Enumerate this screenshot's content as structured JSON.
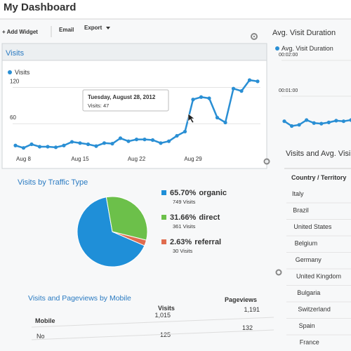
{
  "header": {
    "title": "My Dashboard",
    "toolbar": [
      "+ Add Widget",
      "Email",
      "Export"
    ]
  },
  "chart_data": [
    {
      "type": "line",
      "title": "Visits",
      "categories": [
        null,
        "Aug 8",
        null,
        null,
        null,
        null,
        null,
        null,
        "Aug 15",
        null,
        null,
        null,
        null,
        null,
        null,
        "Aug 22",
        null,
        null,
        null,
        null,
        null,
        null,
        "Aug 29",
        null,
        null,
        null,
        null,
        null,
        null,
        null,
        null
      ],
      "series": [
        {
          "name": "Visits",
          "color": "#2a8fd4",
          "values": [
            24,
            20,
            26,
            22,
            22,
            21,
            24,
            30,
            28,
            26,
            23,
            28,
            27,
            36,
            31,
            34,
            34,
            33,
            28,
            31,
            40,
            47,
            100,
            104,
            102,
            70,
            62,
            118,
            114,
            132,
            130
          ]
        }
      ],
      "ylim": [
        15,
        160
      ],
      "yticks": [
        60,
        120
      ],
      "grid": true,
      "tooltip": {
        "title": "Tuesday, August 28, 2012",
        "text": "Visits: 47"
      }
    },
    {
      "type": "line",
      "title": "Avg. Visit Duration",
      "categories": [
        null,
        null,
        null,
        null,
        null,
        null,
        null,
        null,
        null,
        null
      ],
      "series": [
        {
          "name": "Avg. Visit Duration",
          "color": "#2a8fd4",
          "values": [
            18,
            10,
            12,
            20,
            15,
            14,
            16,
            19,
            18,
            20
          ]
        }
      ],
      "ylim": [
        0,
        140
      ],
      "yticks": [
        {
          "value": 120,
          "label": "00:02:00"
        },
        {
          "value": 60,
          "label": "00:01:00"
        }
      ],
      "grid": true
    },
    {
      "type": "pie",
      "title": "Visits by Traffic Type",
      "categories": [
        "organic",
        "direct",
        "referral"
      ],
      "values": [
        65.7,
        31.66,
        2.63
      ],
      "value_labels": [
        "65.70%",
        "31.66%",
        "2.63%"
      ],
      "visit_labels": [
        "749 Visits",
        "361 Visits",
        "30 Visits"
      ],
      "colors": [
        "#1f8fd8",
        "#6cc04a",
        "#e06c4f"
      ]
    }
  ],
  "mobile_table": {
    "title": "Visits and Pageviews by Mobile",
    "columns": [
      "Visits",
      "Pageviews"
    ],
    "rows": [
      [
        "Mobile",
        "1,015",
        "1,191"
      ],
      [
        "No",
        "125",
        "132"
      ]
    ]
  },
  "country_table": {
    "title": "Visits and Avg. Visi",
    "column": "Country / Territory",
    "rows": [
      "Italy",
      "Brazil",
      "United States",
      "Belgium",
      "Germany",
      "United Kingdom",
      "Bulgaria",
      "Switzerland",
      "Spain",
      "France"
    ]
  }
}
